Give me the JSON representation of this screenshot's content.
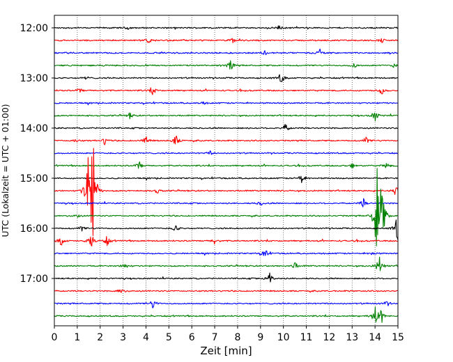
{
  "chart_data": {
    "type": "line",
    "title": "",
    "xlabel": "Zeit  [min]",
    "ylabel": "UTC (Lokalzeit = UTC + 01:00)",
    "xlim": [
      0,
      15
    ],
    "x_ticks": [
      "0",
      "1",
      "2",
      "3",
      "4",
      "5",
      "6",
      "7",
      "8",
      "9",
      "10",
      "11",
      "12",
      "13",
      "14",
      "15"
    ],
    "y_ticks": [
      "12:00",
      "13:00",
      "14:00",
      "15:00",
      "16:00",
      "17:00"
    ],
    "grid": "vertical dotted at each minute",
    "trace_minutes": 15,
    "colors_cycle": [
      "#000000",
      "#ff0000",
      "#0000ff",
      "#008000"
    ],
    "series": [
      {
        "start": "12:00",
        "color": "#000000",
        "events": [
          {
            "x": 3.2,
            "a": 0.25
          },
          {
            "x": 9.8,
            "a": 0.35
          }
        ]
      },
      {
        "start": "12:15",
        "color": "#ff0000",
        "events": [
          {
            "x": 4.1,
            "a": 0.5
          },
          {
            "x": 7.8,
            "a": 0.45
          },
          {
            "x": 14.3,
            "a": 0.35
          }
        ]
      },
      {
        "start": "12:30",
        "color": "#0000ff",
        "events": [
          {
            "x": 9.2,
            "a": 0.35
          },
          {
            "x": 11.6,
            "a": 0.7
          }
        ]
      },
      {
        "start": "12:45",
        "color": "#008000",
        "events": [
          {
            "x": 7.7,
            "a": 0.9
          },
          {
            "x": 13.1,
            "a": 0.4
          },
          {
            "x": 14.8,
            "a": 0.3
          }
        ]
      },
      {
        "start": "13:00",
        "color": "#000000",
        "events": [
          {
            "x": 1.4,
            "a": 0.3
          },
          {
            "x": 9.9,
            "a": 0.9
          }
        ]
      },
      {
        "start": "13:15",
        "color": "#ff0000",
        "events": [
          {
            "x": 1.1,
            "a": 0.4
          },
          {
            "x": 4.3,
            "a": 0.7
          },
          {
            "x": 14.3,
            "a": 0.7
          }
        ]
      },
      {
        "start": "13:30",
        "color": "#0000ff",
        "events": [
          {
            "x": 6.5,
            "a": 0.2
          }
        ]
      },
      {
        "start": "13:45",
        "color": "#008000",
        "events": [
          {
            "x": 3.3,
            "a": 0.5
          },
          {
            "x": 14.0,
            "a": 0.9
          }
        ]
      },
      {
        "start": "14:00",
        "color": "#000000",
        "events": [
          {
            "x": 10.1,
            "a": 0.7
          }
        ]
      },
      {
        "start": "14:15",
        "color": "#ff0000",
        "events": [
          {
            "x": 0.9,
            "a": 0.3
          },
          {
            "x": 2.2,
            "a": 0.6
          },
          {
            "x": 4.0,
            "a": 0.6
          },
          {
            "x": 5.3,
            "a": 0.9
          },
          {
            "x": 13.6,
            "a": 0.6
          }
        ]
      },
      {
        "start": "14:30",
        "color": "#0000ff",
        "events": [
          {
            "x": 6.8,
            "a": 0.3
          }
        ]
      },
      {
        "start": "14:45",
        "color": "#008000",
        "events": [
          {
            "x": 3.7,
            "a": 0.7
          },
          {
            "x": 13.0,
            "a": 0.45
          },
          {
            "x": 14.5,
            "a": 0.6
          }
        ]
      },
      {
        "start": "15:00",
        "color": "#000000",
        "events": [
          {
            "x": 10.8,
            "a": 0.9
          }
        ]
      },
      {
        "start": "15:15",
        "color": "#ff0000",
        "events": [
          {
            "x": 1.5,
            "a": 9.5
          },
          {
            "x": 1.7,
            "a": 7.0
          },
          {
            "x": 4.5,
            "a": 0.4
          },
          {
            "x": 14.9,
            "a": 0.8
          }
        ]
      },
      {
        "start": "15:30",
        "color": "#0000ff",
        "events": [
          {
            "x": 9.0,
            "a": 0.35
          },
          {
            "x": 13.5,
            "a": 0.7
          }
        ]
      },
      {
        "start": "15:45",
        "color": "#008000",
        "events": [
          {
            "x": 1.0,
            "a": 0.3
          },
          {
            "x": 14.1,
            "a": 8.5
          },
          {
            "x": 14.3,
            "a": 5.0
          }
        ]
      },
      {
        "start": "16:00",
        "color": "#000000",
        "events": [
          {
            "x": 1.2,
            "a": 0.4
          },
          {
            "x": 5.3,
            "a": 0.6
          },
          {
            "x": 15.0,
            "a": 3.0
          }
        ]
      },
      {
        "start": "16:15",
        "color": "#ff0000",
        "events": [
          {
            "x": 0.3,
            "a": 0.8
          },
          {
            "x": 1.6,
            "a": 1.4
          },
          {
            "x": 2.3,
            "a": 0.8
          },
          {
            "x": 7.0,
            "a": 0.5
          }
        ]
      },
      {
        "start": "16:30",
        "color": "#0000ff",
        "events": [
          {
            "x": 9.2,
            "a": 0.8
          },
          {
            "x": 13.9,
            "a": 0.3
          }
        ]
      },
      {
        "start": "16:45",
        "color": "#008000",
        "events": [
          {
            "x": 3.1,
            "a": 0.6
          },
          {
            "x": 10.5,
            "a": 0.6
          },
          {
            "x": 14.2,
            "a": 1.8
          }
        ]
      },
      {
        "start": "17:00",
        "color": "#000000",
        "events": [
          {
            "x": 9.4,
            "a": 0.9
          }
        ]
      },
      {
        "start": "17:15",
        "color": "#ff0000",
        "events": [
          {
            "x": 2.9,
            "a": 0.5
          }
        ]
      },
      {
        "start": "17:30",
        "color": "#0000ff",
        "events": [
          {
            "x": 4.3,
            "a": 0.8
          },
          {
            "x": 14.5,
            "a": 0.5
          }
        ]
      },
      {
        "start": "17:45",
        "color": "#008000",
        "events": [
          {
            "x": 14.0,
            "a": 1.5
          },
          {
            "x": 14.3,
            "a": 1.0
          }
        ]
      }
    ]
  }
}
